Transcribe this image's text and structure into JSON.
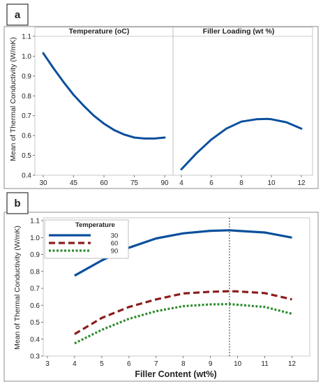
{
  "colors": {
    "blue": "#0b4f9c",
    "red": "#8b1d1d",
    "green": "#2e8b2e",
    "frame": "#9a9a9a"
  },
  "panels": {
    "a_label": "a",
    "b_label": "b"
  },
  "chart_data": [
    {
      "type": "line",
      "panel": "a",
      "ylabel": "Mean of Thermal Conductivity (W/mK)",
      "ylim": [
        0.4,
        1.1
      ],
      "yticks": [
        "0.4",
        "0.5",
        "0.6",
        "0.7",
        "0.8",
        "0.9",
        "1.0",
        "1.1"
      ],
      "facets": [
        {
          "title": "Temperature (oC)",
          "xlim": [
            30,
            90
          ],
          "xticks": [
            "30",
            "45",
            "60",
            "75",
            "90"
          ],
          "x": [
            30,
            35,
            40,
            45,
            50,
            55,
            60,
            65,
            70,
            75,
            80,
            85,
            90
          ],
          "y": [
            1.015,
            0.94,
            0.87,
            0.805,
            0.75,
            0.7,
            0.66,
            0.628,
            0.605,
            0.59,
            0.585,
            0.585,
            0.59
          ]
        },
        {
          "title": "Filler Loading (wt %)",
          "xlim": [
            4,
            12
          ],
          "xticks": [
            "4",
            "6",
            "8",
            "10",
            "12"
          ],
          "x": [
            4,
            5,
            6,
            7,
            8,
            9,
            9.7,
            10,
            11,
            12
          ],
          "y": [
            0.43,
            0.51,
            0.58,
            0.635,
            0.67,
            0.682,
            0.684,
            0.682,
            0.667,
            0.635
          ]
        }
      ]
    },
    {
      "type": "line",
      "panel": "b",
      "xlabel": "Filler Content (wt%)",
      "ylabel": "Mean of Thermal Conductivity (W/mK)",
      "xlim": [
        3,
        12.5
      ],
      "ylim": [
        0.3,
        1.1
      ],
      "xticks": [
        "3",
        "4",
        "5",
        "6",
        "7",
        "8",
        "9",
        "10",
        "11",
        "12"
      ],
      "yticks": [
        "0.3",
        "0.4",
        "0.5",
        "0.6",
        "0.7",
        "0.8",
        "0.9",
        "1.0",
        "1.1"
      ],
      "legend_title": "Temperature",
      "legend_position": "top-left",
      "reference_line_x": 9.7,
      "x": [
        4,
        5,
        6,
        7,
        8,
        9,
        9.7,
        10,
        11,
        12
      ],
      "series": [
        {
          "name": "30",
          "style": "solid",
          "values": [
            0.775,
            0.865,
            0.94,
            0.995,
            1.025,
            1.04,
            1.043,
            1.04,
            1.03,
            1.0
          ]
        },
        {
          "name": "60",
          "style": "dashed",
          "values": [
            0.43,
            0.525,
            0.59,
            0.635,
            0.67,
            0.68,
            0.683,
            0.682,
            0.672,
            0.635
          ]
        },
        {
          "name": "90",
          "style": "dotted",
          "values": [
            0.375,
            0.455,
            0.52,
            0.565,
            0.595,
            0.605,
            0.607,
            0.603,
            0.59,
            0.55
          ]
        }
      ]
    }
  ]
}
